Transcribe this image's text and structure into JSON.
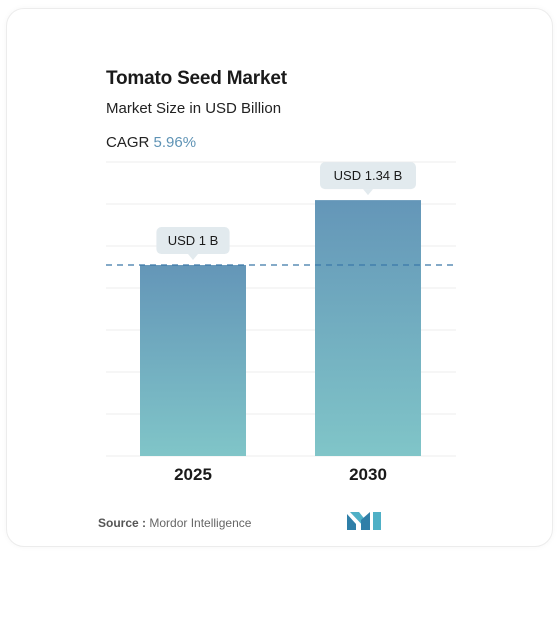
{
  "header": {
    "title": "Tomato Seed Market",
    "subtitle": "Market Size in USD Billion",
    "cagr_label": "CAGR",
    "cagr_value": "5.96%"
  },
  "chart_data": {
    "type": "bar",
    "categories": [
      "2025",
      "2030"
    ],
    "values": [
      1,
      1.34
    ],
    "data_labels": [
      "USD 1 B",
      "USD 1.34 B"
    ],
    "title": "Tomato Seed Market",
    "subtitle": "Market Size in USD Billion",
    "ylim": [
      0,
      1.55
    ],
    "grid": true,
    "reference_line_value": 1
  },
  "footer": {
    "source_label": "Source :",
    "source_value": "Mordor Intelligence"
  },
  "colors": {
    "bar_top": "#6496b8",
    "bar_bottom": "#80c5c8",
    "label_bg": "#e2eaee",
    "dash": "#3a78a8",
    "cagr": "#5f93b5",
    "logo": "#3a8fb0"
  }
}
